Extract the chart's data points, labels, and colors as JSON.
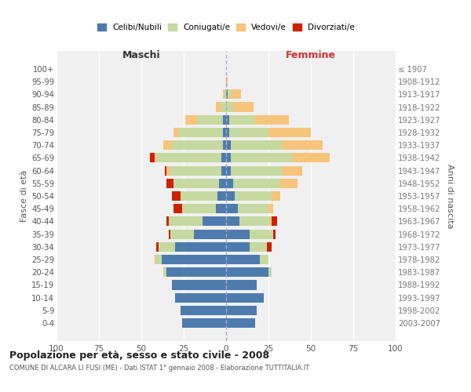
{
  "age_groups": [
    "0-4",
    "5-9",
    "10-14",
    "15-19",
    "20-24",
    "25-29",
    "30-34",
    "35-39",
    "40-44",
    "45-49",
    "50-54",
    "55-59",
    "60-64",
    "65-69",
    "70-74",
    "75-79",
    "80-84",
    "85-89",
    "90-94",
    "95-99",
    "100+"
  ],
  "birth_years": [
    "2003-2007",
    "1998-2002",
    "1993-1997",
    "1988-1992",
    "1983-1987",
    "1978-1982",
    "1973-1977",
    "1968-1972",
    "1963-1967",
    "1958-1962",
    "1953-1957",
    "1948-1952",
    "1943-1947",
    "1938-1942",
    "1933-1937",
    "1928-1932",
    "1923-1927",
    "1918-1922",
    "1913-1917",
    "1908-1912",
    "≤ 1907"
  ],
  "male": {
    "celibi": [
      26,
      27,
      30,
      32,
      35,
      38,
      30,
      19,
      14,
      6,
      5,
      4,
      3,
      3,
      2,
      2,
      2,
      0,
      0,
      0,
      0
    ],
    "coniugati": [
      0,
      0,
      0,
      0,
      2,
      3,
      10,
      14,
      20,
      20,
      22,
      27,
      30,
      38,
      30,
      26,
      15,
      3,
      1,
      0,
      0
    ],
    "vedovi": [
      0,
      0,
      0,
      0,
      0,
      1,
      0,
      0,
      0,
      0,
      0,
      0,
      2,
      1,
      5,
      3,
      7,
      3,
      1,
      0,
      0
    ],
    "divorziati": [
      0,
      0,
      0,
      0,
      0,
      0,
      1,
      1,
      1,
      5,
      5,
      4,
      1,
      3,
      0,
      0,
      0,
      0,
      0,
      0,
      0
    ]
  },
  "female": {
    "nubili": [
      17,
      18,
      22,
      18,
      25,
      20,
      14,
      14,
      8,
      7,
      5,
      4,
      3,
      3,
      3,
      2,
      2,
      0,
      1,
      0,
      0
    ],
    "coniugate": [
      0,
      0,
      0,
      0,
      2,
      5,
      10,
      14,
      18,
      18,
      22,
      28,
      30,
      36,
      30,
      23,
      15,
      4,
      2,
      0,
      0
    ],
    "vedove": [
      0,
      0,
      0,
      0,
      0,
      0,
      0,
      0,
      1,
      3,
      5,
      10,
      12,
      22,
      24,
      25,
      20,
      12,
      6,
      1,
      0
    ],
    "divorziate": [
      0,
      0,
      0,
      0,
      0,
      0,
      3,
      1,
      3,
      0,
      0,
      0,
      0,
      0,
      0,
      0,
      0,
      0,
      0,
      0,
      0
    ]
  },
  "legend_labels": [
    "Celibi/Nubili",
    "Coniugati/e",
    "Vedovi/e",
    "Divorziati/e"
  ],
  "title": "Popolazione per età, sesso e stato civile - 2008",
  "subtitle": "COMUNE DI ALCARA LI FUSI (ME) - Dati ISTAT 1° gennaio 2008 - Elaborazione TUTTITALIA.IT",
  "xlabel_left": "Maschi",
  "xlabel_right": "Femmine",
  "ylabel_left": "Fasce di età",
  "ylabel_right": "Anni di nascita",
  "xlim": 100,
  "bg_color": "#f0f0f0",
  "bar_color_blue": "#4d7bae",
  "bar_color_green": "#c5d9a0",
  "bar_color_orange": "#f7c47b",
  "bar_color_red": "#cc2200"
}
